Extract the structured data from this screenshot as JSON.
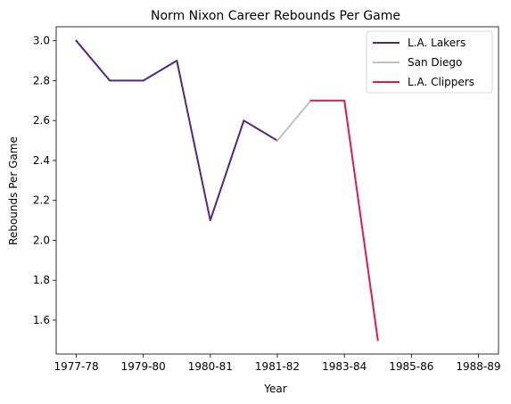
{
  "chart_data": {
    "type": "line",
    "title": "Norm Nixon Career Rebounds Per Game",
    "xlabel": "Year",
    "ylabel": "Rebounds Per Game",
    "x_tick_labels": [
      "1977-78",
      "1979-80",
      "1980-81",
      "1981-82",
      "1983-84",
      "1985-86",
      "1988-89"
    ],
    "x_tick_positions": [
      0,
      1,
      2,
      3,
      4,
      5,
      6
    ],
    "y_ticks": [
      1.6,
      1.8,
      2.0,
      2.2,
      2.4,
      2.6,
      2.8,
      3.0
    ],
    "y_tick_labels": [
      "1.6",
      "1.8",
      "2.0",
      "2.2",
      "2.4",
      "2.6",
      "2.8",
      "3.0"
    ],
    "xlim": [
      -0.3,
      6.3
    ],
    "ylim": [
      1.43,
      3.07
    ],
    "legend_position": "top-right",
    "series": [
      {
        "name": "L.A. Lakers",
        "color": "#552583",
        "x": [
          0,
          0.5,
          1,
          1.5,
          2,
          2.5,
          3
        ],
        "values": [
          3.0,
          2.8,
          2.8,
          2.9,
          2.1,
          2.6,
          2.5
        ]
      },
      {
        "name": "San Diego",
        "color": "#BEC0C2",
        "x": [
          3,
          3.5
        ],
        "values": [
          2.5,
          2.7
        ]
      },
      {
        "name": "L.A. Clippers",
        "color": "#E0194C",
        "x": [
          3.5,
          4,
          4.5
        ],
        "values": [
          2.7,
          2.7,
          1.5
        ]
      }
    ]
  }
}
